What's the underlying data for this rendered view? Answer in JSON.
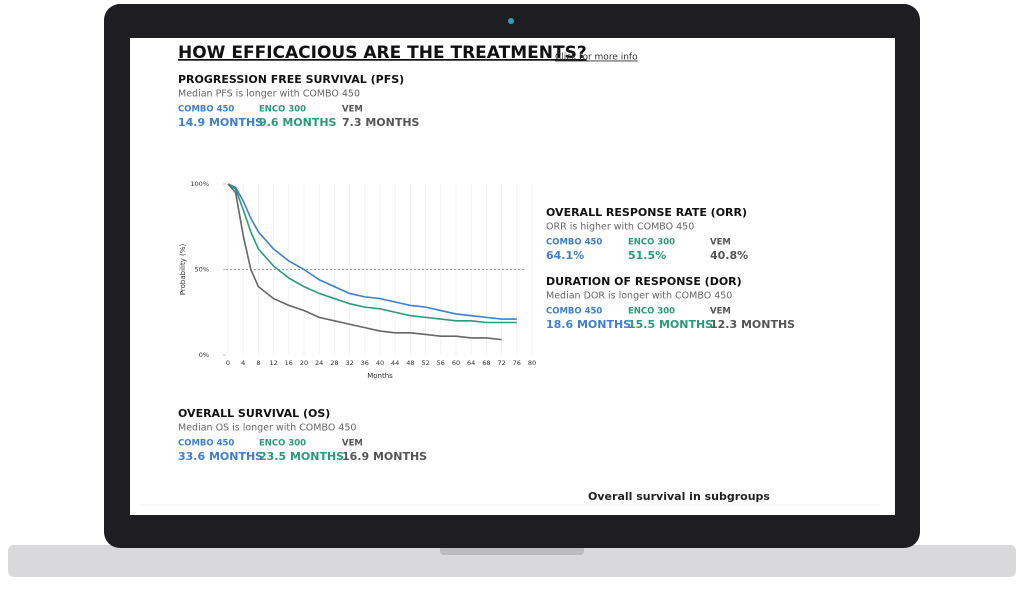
{
  "header": {
    "title": "HOW EFFICACIOUS ARE THE TREATMENTS?",
    "link": "Click for more info"
  },
  "sections": [
    {
      "title": "PROGRESSION FREE SURVIVAL (PFS)",
      "subtitle": "Median PFS is longer with COMBO 450",
      "items": [
        {
          "label": "COMBO 450",
          "value": "14.9 MONTHS"
        },
        {
          "label": "ENCO 300",
          "value": "9.6 MONTHS"
        },
        {
          "label": "VEM",
          "value": "7.3 MONTHS"
        }
      ]
    },
    {
      "title": "OVERALL RESPONSE RATE (ORR)",
      "subtitle": "ORR is higher with COMBO 450",
      "items": [
        {
          "label": "COMBO 450",
          "value": "64.1%"
        },
        {
          "label": "ENCO 300",
          "value": "51.5%"
        },
        {
          "label": "VEM",
          "value": "40.8%"
        }
      ]
    },
    {
      "title": "DURATION OF RESPONSE (DOR)",
      "subtitle": "Median DOR is longer with COMBO 450",
      "items": [
        {
          "label": "COMBO 450",
          "value": "18.6 MONTHS"
        },
        {
          "label": "ENCO 300",
          "value": "15.5 MONTHS"
        },
        {
          "label": "VEM",
          "value": "12.3 MONTHS"
        }
      ]
    },
    {
      "title": "OVERALL SURVIVAL (OS)",
      "subtitle": "Median OS is longer with COMBO 450",
      "items": [
        {
          "label": "COMBO 450",
          "value": "33.6 MONTHS"
        },
        {
          "label": "ENCO 300",
          "value": "23.5 MONTHS"
        },
        {
          "label": "VEM",
          "value": "16.9 MONTHS"
        }
      ]
    }
  ],
  "footer": "Overall survival in subgroups",
  "chart_data": {
    "type": "line",
    "x_label": "Months",
    "y_label": "Probability (%)",
    "x": [
      0,
      2,
      4,
      6,
      8,
      12,
      16,
      20,
      24,
      28,
      32,
      36,
      40,
      44,
      48,
      52,
      56,
      60,
      64,
      68,
      72,
      76
    ],
    "series": [
      {
        "name": "COMBO 450",
        "color": "#3f7fcf",
        "values": [
          100,
          98,
          90,
          80,
          72,
          62,
          55,
          50,
          44,
          40,
          36,
          34,
          33,
          31,
          29,
          28,
          26,
          24,
          23,
          22,
          21,
          21
        ]
      },
      {
        "name": "ENCO 300",
        "color": "#2a9a7a",
        "values": [
          100,
          97,
          85,
          72,
          62,
          52,
          45,
          40,
          36,
          33,
          30,
          28,
          27,
          25,
          23,
          22,
          21,
          20,
          20,
          19,
          19,
          19
        ]
      },
      {
        "name": "VEM",
        "color": "#666666",
        "values": [
          100,
          95,
          70,
          50,
          40,
          33,
          29,
          26,
          22,
          20,
          18,
          16,
          14,
          13,
          13,
          12,
          11,
          11,
          10,
          10,
          9,
          null
        ]
      }
    ],
    "xlim": [
      0,
      80
    ],
    "ylim": [
      0,
      100
    ],
    "xticks": [
      0,
      4,
      8,
      12,
      16,
      20,
      24,
      28,
      32,
      36,
      40,
      44,
      48,
      52,
      56,
      60,
      64,
      68,
      72,
      76,
      80
    ],
    "yticks": [
      {
        "value": 0,
        "label": "0%"
      },
      {
        "value": 50,
        "label": "50%"
      },
      {
        "value": 100,
        "label": "100%"
      }
    ],
    "grid": true
  }
}
